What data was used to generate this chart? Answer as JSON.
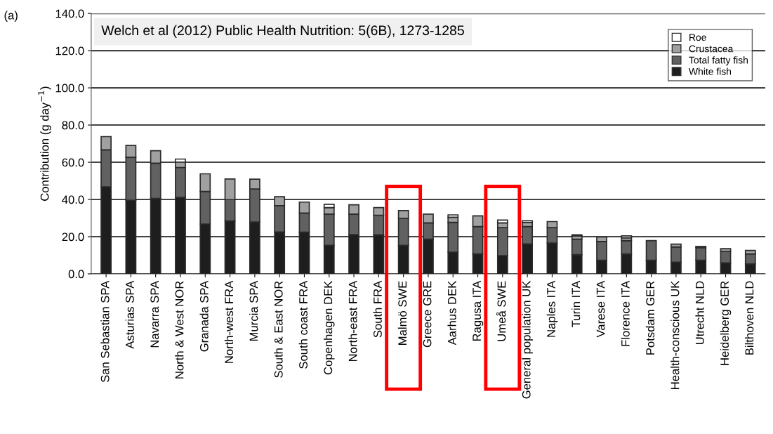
{
  "chart_data": {
    "type": "bar",
    "stacked": true,
    "ylabel": "Contribution (g day$^{−1}$)",
    "annotations": [
      "(a)",
      "Welch et al (2012) Public Health Nutrition: 5(6B), 1273-1285"
    ],
    "categories": [
      "San Sebastian SPA",
      "Asturias SPA",
      "Navarra SPA",
      "North & West NOR",
      "Granada SPA",
      "North-west FRA",
      "Murcia SPA",
      "South & East NOR",
      "South coast FRA",
      "Copenhagen DEK",
      "North-east FRA",
      "South FRA",
      "Malmö SWE",
      "Greece GRE",
      "Aarhus DEK",
      "Ragusa ITA",
      "Umeå SWE",
      "General population UK",
      "Naples ITA",
      "Turin ITA",
      "Varese ITA",
      "Florence ITA",
      "Potsdam GER",
      "Health-conscious UK",
      "Utrecht NLD",
      "Heidelberg GER",
      "Bilthoven NLD"
    ],
    "series": [
      {
        "name": "White fish",
        "color": "#1e1e1e",
        "values": [
          46.8,
          39.6,
          40.5,
          41.1,
          26.8,
          28.5,
          27.9,
          22.5,
          22.4,
          15.3,
          21.1,
          21.0,
          15.3,
          18.6,
          11.7,
          10.7,
          9.8,
          16.1,
          16.6,
          10.3,
          7.3,
          10.7,
          7.3,
          6.3,
          7.3,
          5.9,
          5.3
        ]
      },
      {
        "name": "Total fatty fish",
        "color": "#616161",
        "values": [
          19.9,
          23.1,
          19.0,
          16.1,
          17.5,
          11.4,
          17.7,
          14.2,
          10.3,
          16.8,
          11.0,
          10.5,
          14.6,
          8.8,
          16.0,
          14.7,
          15.1,
          9.3,
          8.3,
          8.3,
          10.1,
          7.2,
          10.6,
          8.2,
          6.8,
          6.1,
          5.4
        ]
      },
      {
        "name": "Crustacea",
        "color": "#a0a0a0",
        "values": [
          7.1,
          6.3,
          6.7,
          2.9,
          9.5,
          11.1,
          5.3,
          4.8,
          5.9,
          3.5,
          5.0,
          4.1,
          4.1,
          4.7,
          2.7,
          5.8,
          2.5,
          2.3,
          3.2,
          1.8,
          2.4,
          1.5,
          null,
          1.5,
          0.7,
          1.5,
          1.9
        ]
      },
      {
        "name": "Roe",
        "color": "#ffffff",
        "values": [
          null,
          null,
          null,
          1.6,
          null,
          null,
          null,
          null,
          null,
          1.8,
          null,
          null,
          null,
          null,
          1.3,
          null,
          1.5,
          0.9,
          null,
          0.6,
          null,
          1.0,
          null,
          null,
          null,
          null,
          null
        ]
      }
    ],
    "ylim": [
      0,
      140
    ],
    "yticks": [
      {
        "value": 0,
        "label": "0.0"
      },
      {
        "value": 20,
        "label": "20.0"
      },
      {
        "value": 40,
        "label": "40.0"
      },
      {
        "value": 60,
        "label": "60.0"
      },
      {
        "value": 80,
        "label": "80.0"
      },
      {
        "value": 100,
        "label": "100.0"
      },
      {
        "value": 120,
        "label": "120.0"
      },
      {
        "value": 140,
        "label": "140.0"
      }
    ],
    "grid": "y",
    "legend": "top right"
  }
}
